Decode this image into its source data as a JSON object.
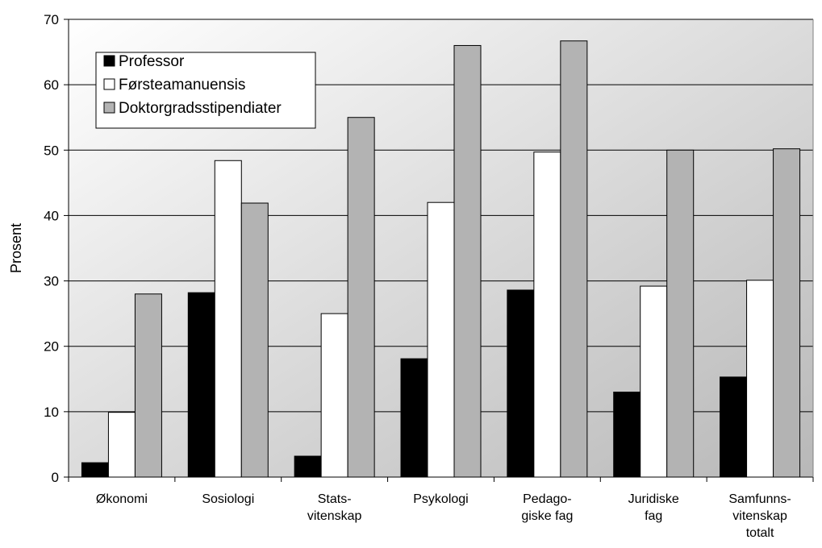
{
  "chart_data": {
    "type": "bar",
    "title": "",
    "xlabel": "",
    "ylabel": "Prosent",
    "ylim": [
      0,
      70
    ],
    "yticks": [
      0,
      10,
      20,
      30,
      40,
      50,
      60,
      70
    ],
    "grid": true,
    "legend_position": "top-left",
    "categories": [
      [
        "Økonomi"
      ],
      [
        "Sosiologi"
      ],
      [
        "Stats-",
        "vitenskap"
      ],
      [
        "Psykologi"
      ],
      [
        "Pedago-",
        "giske fag"
      ],
      [
        "Juridiske",
        "fag"
      ],
      [
        "Samfunns-",
        "vitenskap",
        "totalt"
      ]
    ],
    "series": [
      {
        "name": "Professor",
        "color": "#000000",
        "values": [
          2.2,
          28.2,
          3.2,
          18.1,
          28.6,
          13.0,
          15.3
        ]
      },
      {
        "name": "Førsteamanuensis",
        "color": "#ffffff",
        "values": [
          9.9,
          48.4,
          25.0,
          42.0,
          49.7,
          29.2,
          30.1
        ]
      },
      {
        "name": "Doktorgradsstipendiater",
        "color": "#b3b3b3",
        "values": [
          28.0,
          41.9,
          55.0,
          66.0,
          66.7,
          50.0,
          50.2
        ]
      }
    ],
    "plot_background": {
      "from": "#ffffff",
      "to": "#b8b8b8"
    }
  }
}
